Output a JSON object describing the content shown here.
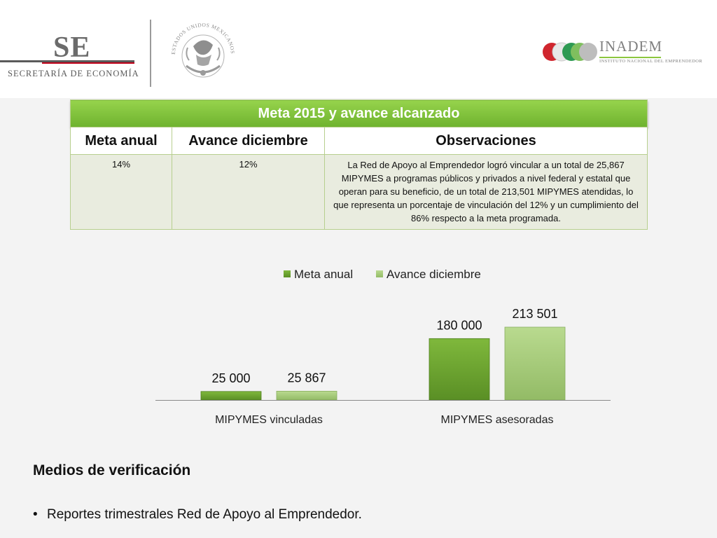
{
  "header": {
    "se_logo_text": "SE",
    "se_subtitle": "SECRETARÍA DE ECONOMÍA",
    "seal_text": "ESTADOS UNIDOS MEXICANOS",
    "inadem_name": "INADEM",
    "inadem_subtitle": "INSTITUTO NACIONAL DEL EMPRENDEDOR"
  },
  "table": {
    "title": "Meta 2015 y avance alcanzado",
    "headers": [
      "Meta anual",
      "Avance diciembre",
      "Observaciones"
    ],
    "row": {
      "meta_anual": "14%",
      "avance_diciembre": "12%",
      "observaciones": "La Red de Apoyo al Emprendedor logró vincular a un total de 25,867 MIPYMES a programas públicos y privados a nivel federal y estatal que operan para su beneficio, de un total de 213,501 MIPYMES atendidas, lo que representa un porcentaje de vinculación del 12% y un cumplimiento del 86% respecto a la meta programada."
    }
  },
  "chart_data": {
    "type": "bar",
    "categories": [
      "MIPYMES vinculadas",
      "MIPYMES asesoradas"
    ],
    "series": [
      {
        "name": "Meta anual",
        "values": [
          25000,
          180000
        ],
        "labels": [
          "25 000",
          "180 000"
        ],
        "color": "#6ea531"
      },
      {
        "name": "Avance diciembre",
        "values": [
          25867,
          213501
        ],
        "labels": [
          "25 867",
          "213 501"
        ],
        "color": "#a9cf7a"
      }
    ],
    "title": "",
    "xlabel": "",
    "ylabel": "",
    "ylim": [
      0,
      213501
    ],
    "legend_position": "top",
    "grid": false
  },
  "verification": {
    "title": "Medios de verificación",
    "bullet_symbol": "•",
    "items": [
      "Reportes trimestrales Red de Apoyo al Emprendedor."
    ]
  }
}
